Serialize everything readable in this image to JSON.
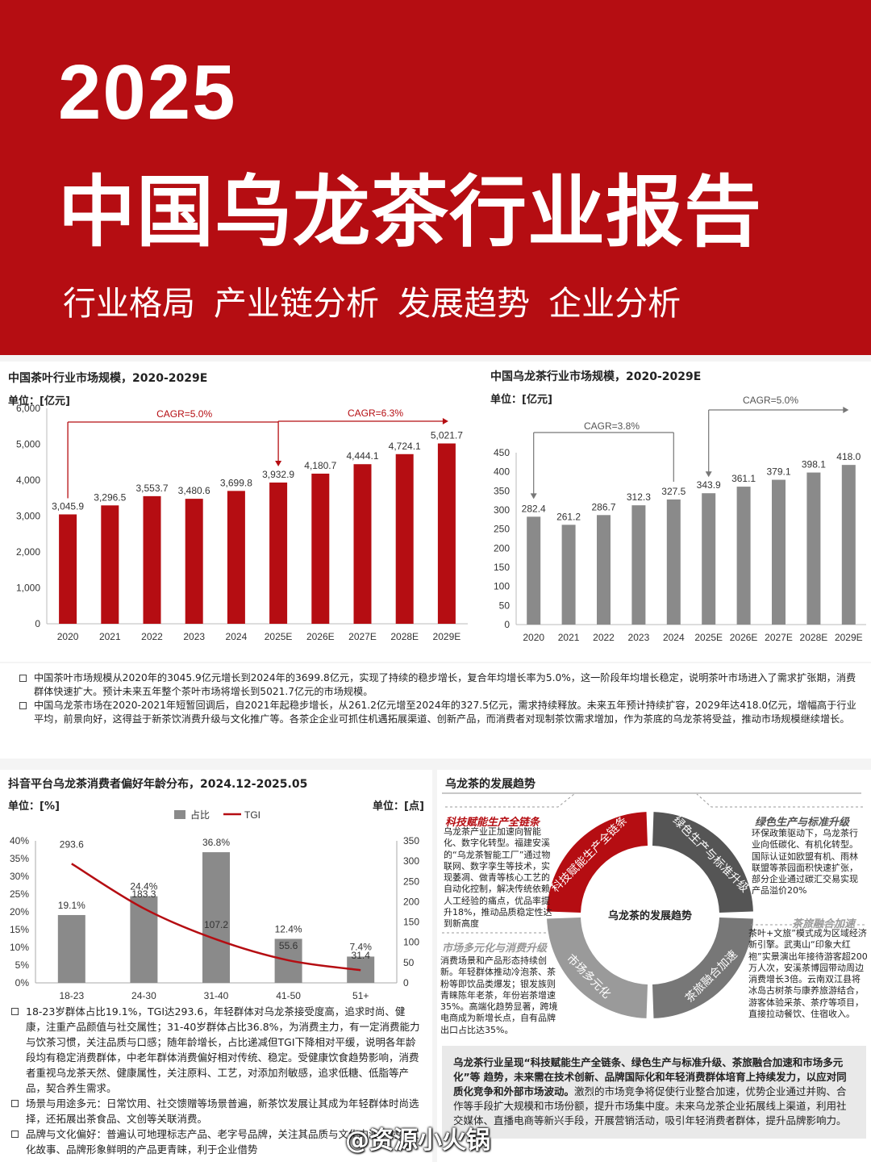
{
  "header": {
    "year": "2025",
    "title": "中国乌龙茶行业报告",
    "subtitle": "行业格局  产业链分析  发展趋势  企业分析"
  },
  "colors": {
    "brand_red": "#b50d12",
    "grey_bar": "#8a8a8a",
    "tgi_line": "#b50d12"
  },
  "chart1": {
    "title": "中国茶叶行业市场规模，2020-2029E",
    "unit": "单位：[亿元]"
  },
  "chart2": {
    "title": "中国乌龙茶行业市场规模，2020-2029E",
    "unit": "单位：[亿元]"
  },
  "notes_top": [
    "中国茶叶市场规模从2020年的3045.9亿元增长到2024年的3699.8亿元，实现了持续的稳步增长，复合年均增长率为5.0%，这一阶段年均增长稳定，说明茶叶市场进入了需求扩张期，消费群体快速扩大。预计未来五年整个茶叶市场将增长到5021.7亿元的市场规模。",
    "中国乌龙茶市场在2020-2021年短暂回调后，自2021年起稳步增长，从261.2亿元增至2024年的327.5亿元，需求持续释放。未来五年预计持续扩容，2029年达418.0亿元，增幅高于行业平均，前景向好，这得益于新茶饮消费升级与文化推广等。各茶企企业可抓住机遇拓展渠道、创新产品，而消费者对现制茶饮需求增加，作为茶底的乌龙茶将受益，推动市场规模继续增长。"
  ],
  "chart3": {
    "title": "抖音平台乌龙茶消费者偏好年龄分布，2024.12-2025.05",
    "unit_left": "单位：[%]",
    "unit_right": "单位：[点]"
  },
  "notes_bottom": [
    "18-23岁群体占比19.1%，TGI达293.6，年轻群体对乌龙茶接受度高，追求时尚、健康，注重产品颜值与社交属性；31-40岁群体占比36.8%，为消费主力，有一定消费能力与饮茶习惯，关注品质与口感；随年龄增长，占比递减但TGI下降相对平缓，说明各年龄段均有稳定消费群体，中老年群体消费偏好相对传统、稳定。受健康饮食趋势影响，消费者重视乌龙茶天然、健康属性，关注原料、工艺，对添加剂敏感，追求低糖、低脂等产品，契合养生需求。",
    "场景与用途多元：日常饮用、社交馈赠等场景普遍，新茶饮发展让其成为年轻群体时尚选择，还拓展出茶食品、文创等关联消费。",
    "品牌与文化偏好：普遍认可地理标志产品、老字号品牌，关注其品质与文化内涵，对有文化故事、品牌形象鲜明的产品更青睐，利于企业借势"
  ],
  "trends": {
    "title": "乌龙茶的发展趋势",
    "center": "乌龙茶的发展趋势",
    "ring": [
      "科技赋能生产全链条",
      "绿色生产与标准升级",
      "茶旅融合加速",
      "市场多元化"
    ],
    "items": [
      {
        "label": "科技赋能生产全链条",
        "text": "乌龙茶产业正加速向智能化、数字化转型。福建安溪的“乌龙茶智能工厂”通过物联网、数字孪生等技术，实现萎凋、做青等核心工艺的自动化控制，解决传统依赖人工经验的痛点，优品率提升18%，推动品质稳定性达到新高度"
      },
      {
        "label": "绿色生产与标准升级",
        "text": "环保政策驱动下，乌龙茶行业向低碳化、有机化转型。国际认证如欧盟有机、雨林联盟等茶园面积快速扩张，部分企业通过碳汇交易实现产品溢价20%"
      },
      {
        "label": "市场多元化与消费升级",
        "text": "消费场景和产品形态持续创新。年轻群体推动冷泡茶、茶粉等即饮品类爆发；银发族则青睐陈年老茶，年份岩茶增速35%。高端化趋势显著，跨境电商成为新增长点，自有品牌出口占比达35%。"
      },
      {
        "label": "茶旅融合加速",
        "text": "茶叶+文旅”模式成为区域经济新引擎。武夷山“印象大红袍”实景演出年接待游客超200万人次，安溪茶博园带动周边消费增长3倍。云南双江县将冰岛古树茶与康养旅游结合，游客体验采茶、茶疗等项目，直接拉动餐饮、住宿收入。"
      }
    ],
    "summary_bold": "乌龙茶行业呈现“科技赋能生产全链条、绿色生产与标准升级、茶旅融合加速和市场多元化”等 趋势，未来需在技术创新、品牌国际化和年轻消费群体培育上持续发力，以应对同质化竞争和外部市场波动。",
    "summary_rest": "激烈的市场竞争将促使行业整合加速，优势企业通过并购、合作等手段扩大规模和市场份额，提升市场集中度。未来乌龙茶企业拓展线上渠道，利用社交媒体、直播电商等新兴手段，开展营销活动，吸引年轻消费者群体，提升品牌影响力。"
  },
  "watermark": "@资源小火锅",
  "chart_data": [
    {
      "type": "bar",
      "title": "中国茶叶行业市场规模，2020-2029E",
      "ylabel": "单位：[亿元]",
      "categories": [
        "2020",
        "2021",
        "2022",
        "2023",
        "2024",
        "2025E",
        "2026E",
        "2027E",
        "2028E",
        "2029E"
      ],
      "values": [
        3045.9,
        3296.5,
        3553.7,
        3480.6,
        3699.8,
        3932.9,
        4180.7,
        4444.1,
        4724.1,
        5021.7
      ],
      "value_labels": [
        "3,045.9",
        "3,296.5",
        "3,553.7",
        "3,480.6",
        "3,699.8",
        "3,932.9",
        "4,180.7",
        "4,444.1",
        "4,724.1",
        "5,021.7"
      ],
      "yticks": [
        "0",
        "1,000",
        "2,000",
        "3,000",
        "4,000",
        "5,000",
        "6,000"
      ],
      "ylim": [
        0,
        6000
      ],
      "color": "#b50d12",
      "annotations": [
        "CAGR=5.0%",
        "CAGR=6.3%"
      ]
    },
    {
      "type": "bar",
      "title": "中国乌龙茶行业市场规模，2020-2029E",
      "ylabel": "单位：[亿元]",
      "categories": [
        "2020",
        "2021",
        "2022",
        "2023",
        "2024",
        "2025E",
        "2026E",
        "2027E",
        "2028E",
        "2029E"
      ],
      "values": [
        282.4,
        261.2,
        286.7,
        312.3,
        327.5,
        343.9,
        361.1,
        379.1,
        398.1,
        418.0
      ],
      "value_labels": [
        "282.4",
        "261.2",
        "286.7",
        "312.3",
        "327.5",
        "343.9",
        "361.1",
        "379.1",
        "398.1",
        "418.0"
      ],
      "yticks": [
        "0",
        "50",
        "100",
        "150",
        "200",
        "250",
        "300",
        "350",
        "400",
        "450"
      ],
      "ylim": [
        0,
        450
      ],
      "color": "#8a8a8a",
      "annotations": [
        "CAGR=3.8%",
        "CAGR=5.0%"
      ]
    },
    {
      "type": "bar",
      "title": "抖音平台乌龙茶消费者偏好年龄分布，2024.12-2025.05",
      "categories": [
        "18-23",
        "24-30",
        "31-40",
        "41-50",
        "51+"
      ],
      "series": [
        {
          "name": "占比",
          "kind": "bar",
          "axis": "left",
          "values": [
            19.1,
            24.4,
            36.8,
            12.4,
            7.4
          ],
          "labels": [
            "19.1%",
            "24.4%",
            "36.8%",
            "12.4%",
            "7.4%"
          ],
          "color": "#8a8a8a"
        },
        {
          "name": "TGI",
          "kind": "line",
          "axis": "right",
          "values": [
            293.6,
            183.3,
            107.2,
            55.6,
            31.4
          ],
          "labels": [
            "293.6",
            "183.3",
            "107.2",
            "55.6",
            "31.4"
          ],
          "color": "#b50d12"
        }
      ],
      "yticks_left": [
        "0%",
        "5%",
        "10%",
        "15%",
        "20%",
        "25%",
        "30%",
        "35%",
        "40%"
      ],
      "yticks_right": [
        "0",
        "50",
        "100",
        "150",
        "200",
        "250",
        "300",
        "350"
      ],
      "ylim_left": [
        0,
        40
      ],
      "ylim_right": [
        0,
        350
      ],
      "legend": "top-center"
    }
  ]
}
